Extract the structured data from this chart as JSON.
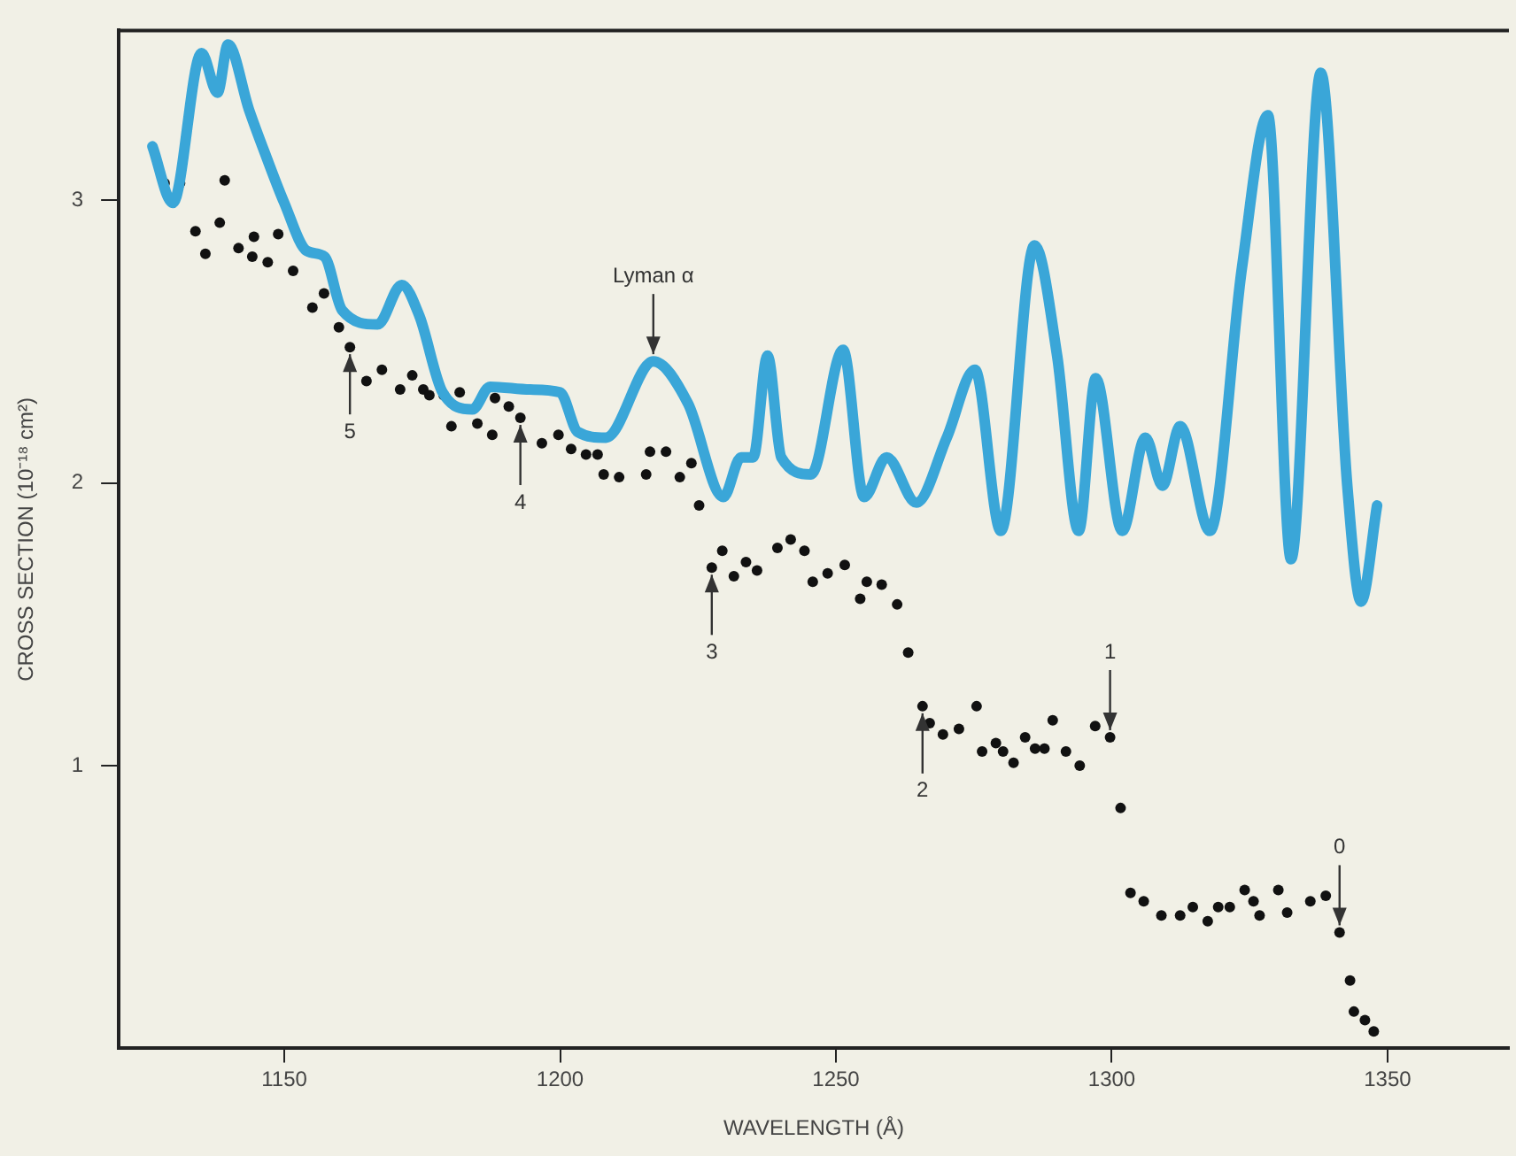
{
  "chart_data": {
    "type": "line",
    "xlabel": "WAVELENGTH (Å)",
    "ylabel": "CROSS SECTION (10⁻¹⁸ cm²)",
    "xlim": [
      1120,
      1372
    ],
    "ylim": [
      0,
      3.6
    ],
    "xticks": [
      1150,
      1200,
      1250,
      1300,
      1350
    ],
    "yticks": [
      1,
      2,
      3
    ],
    "grid": false,
    "legend": false,
    "series": [
      {
        "color": "#3aa6d8",
        "marker": "none",
        "line_style": "solid",
        "x": [
          1126.1,
          1129.8,
          1135.0,
          1137.9,
          1139.8,
          1143.6,
          1146.8,
          1150.0,
          1154.1,
          1157.3,
          1160.5,
          1166.9,
          1171.3,
          1174.5,
          1178.7,
          1184.1,
          1187.3,
          1194.6,
          1200.0,
          1203.2,
          1208.3,
          1216.9,
          1223.2,
          1229.6,
          1232.8,
          1235.0,
          1237.6,
          1240.1,
          1245.5,
          1251.3,
          1255.1,
          1259.2,
          1264.6,
          1270.1,
          1275.2,
          1279.9,
          1286.0,
          1290.1,
          1294.0,
          1297.1,
          1301.9,
          1306.1,
          1309.2,
          1312.4,
          1317.8,
          1323.6,
          1328.3,
          1332.5,
          1337.9,
          1342.7,
          1345.2,
          1348.1
        ],
        "values": [
          3.19,
          2.99,
          3.52,
          3.38,
          3.55,
          3.32,
          3.15,
          2.99,
          2.82,
          2.8,
          2.61,
          2.56,
          2.7,
          2.59,
          2.32,
          2.26,
          2.34,
          2.33,
          2.32,
          2.18,
          2.16,
          2.43,
          2.28,
          1.95,
          2.09,
          2.09,
          2.45,
          2.09,
          2.03,
          2.47,
          1.95,
          2.09,
          1.93,
          2.16,
          2.4,
          1.83,
          2.84,
          2.45,
          1.83,
          2.37,
          1.83,
          2.16,
          1.99,
          2.2,
          1.83,
          2.76,
          3.3,
          1.73,
          3.45,
          1.99,
          1.58,
          1.92
        ]
      },
      {
        "type": "scatter",
        "color": "#111111",
        "marker": "circle",
        "x": [
          1128.3,
          1131.1,
          1133.9,
          1135.7,
          1138.3,
          1139.2,
          1141.7,
          1144.2,
          1144.5,
          1147.0,
          1148.9,
          1151.6,
          1155.1,
          1157.2,
          1159.9,
          1161.9,
          1164.9,
          1167.7,
          1171.0,
          1173.2,
          1175.2,
          1176.3,
          1178.9,
          1180.3,
          1181.8,
          1185.0,
          1187.7,
          1188.2,
          1190.7,
          1192.8,
          1196.7,
          1199.7,
          1202.0,
          1204.7,
          1206.8,
          1207.9,
          1210.7,
          1215.6,
          1216.3,
          1219.2,
          1221.7,
          1223.8,
          1225.2,
          1227.5,
          1229.4,
          1231.5,
          1233.7,
          1235.7,
          1239.4,
          1241.8,
          1244.3,
          1245.8,
          1248.5,
          1251.6,
          1254.4,
          1255.6,
          1258.3,
          1261.1,
          1263.1,
          1265.7,
          1267.0,
          1269.4,
          1272.3,
          1275.5,
          1276.5,
          1279.0,
          1280.3,
          1282.2,
          1284.3,
          1286.1,
          1287.8,
          1289.3,
          1291.7,
          1294.2,
          1297.0,
          1299.7,
          1301.6,
          1303.4,
          1305.8,
          1309.0,
          1312.4,
          1314.7,
          1317.4,
          1319.3,
          1321.4,
          1324.1,
          1325.7,
          1326.8,
          1330.2,
          1331.8,
          1336.0,
          1338.8,
          1341.3,
          1343.2,
          1343.9,
          1345.9,
          1347.5
        ],
        "values": [
          3.06,
          3.06,
          2.89,
          2.81,
          2.92,
          3.07,
          2.83,
          2.8,
          2.87,
          2.78,
          2.88,
          2.75,
          2.62,
          2.67,
          2.55,
          2.48,
          2.36,
          2.4,
          2.33,
          2.38,
          2.33,
          2.31,
          2.31,
          2.2,
          2.32,
          2.21,
          2.17,
          2.3,
          2.27,
          2.23,
          2.14,
          2.17,
          2.12,
          2.1,
          2.1,
          2.03,
          2.02,
          2.03,
          2.11,
          2.11,
          2.02,
          2.07,
          1.92,
          1.7,
          1.76,
          1.67,
          1.72,
          1.69,
          1.77,
          1.8,
          1.76,
          1.65,
          1.68,
          1.71,
          1.59,
          1.65,
          1.64,
          1.57,
          1.4,
          1.21,
          1.15,
          1.11,
          1.13,
          1.21,
          1.05,
          1.08,
          1.05,
          1.01,
          1.1,
          1.06,
          1.06,
          1.16,
          1.05,
          1.0,
          1.14,
          1.1,
          0.85,
          0.55,
          0.52,
          0.47,
          0.47,
          0.5,
          0.45,
          0.5,
          0.5,
          0.56,
          0.52,
          0.47,
          0.56,
          0.48,
          0.52,
          0.54,
          0.41,
          0.24,
          0.13,
          0.1,
          0.06
        ]
      }
    ],
    "annotations": [
      {
        "text": "Lyman α",
        "x": 1216.9,
        "y": 2.43
      },
      {
        "text": "5",
        "x": 1161.9,
        "y": 2.48
      },
      {
        "text": "4",
        "x": 1192.8,
        "y": 2.23
      },
      {
        "text": "3",
        "x": 1227.5,
        "y": 1.7
      },
      {
        "text": "2",
        "x": 1265.7,
        "y": 1.21
      },
      {
        "text": "1",
        "x": 1299.7,
        "y": 1.1
      },
      {
        "text": "0",
        "x": 1341.3,
        "y": 0.41
      }
    ]
  }
}
